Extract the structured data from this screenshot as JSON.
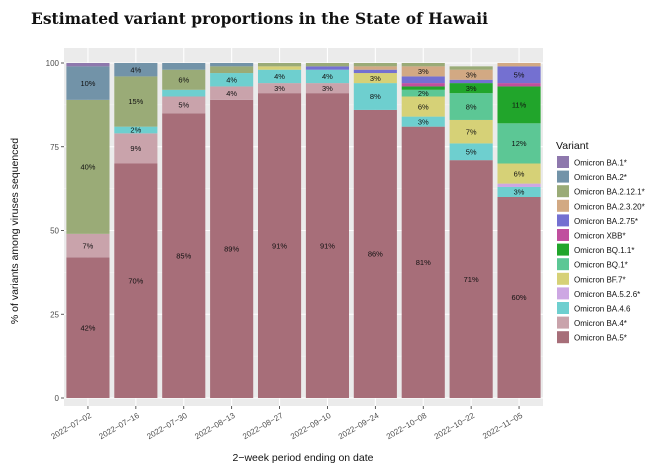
{
  "chart_data": {
    "type": "bar",
    "stacked": true,
    "title": "Estimated variant proportions in the State of Hawaii",
    "xlabel": "2−week period ending on date",
    "ylabel": "% of variants among viruses sequenced",
    "ylim": [
      0,
      100
    ],
    "yticks": [
      0,
      25,
      50,
      75,
      100
    ],
    "legend_title": "Variant",
    "legend_position": "right",
    "categories": [
      "2022−07−02",
      "2022−07−16",
      "2022−07−30",
      "2022−08−13",
      "2022−08−27",
      "2022−09−10",
      "2022−09−24",
      "2022−10−08",
      "2022−10−22",
      "2022−11−05"
    ],
    "series": [
      {
        "name": "Omicron BA.5*",
        "color": "#a76e79",
        "values": [
          42,
          70,
          85,
          89,
          91,
          91,
          86,
          81,
          71,
          60
        ],
        "labels": [
          "42%",
          "70%",
          "85%",
          "89%",
          "91%",
          "91%",
          "86%",
          "81%",
          "71%",
          "60%"
        ]
      },
      {
        "name": "Omicron BA.4*",
        "color": "#c9a3ab",
        "values": [
          7,
          9,
          5,
          4,
          3,
          3,
          0,
          0,
          0,
          0
        ],
        "labels": [
          "7%",
          "9%",
          "5%",
          "4%",
          "3%",
          "3%",
          "",
          "",
          "",
          ""
        ]
      },
      {
        "name": "Omicron BA.4.6",
        "color": "#6ecfcf",
        "values": [
          0,
          2,
          2,
          4,
          4,
          4,
          8,
          3,
          5,
          3
        ],
        "labels": [
          "",
          "2%",
          "",
          "4%",
          "4%",
          "4%",
          "8%",
          "3%",
          "5%",
          "3%"
        ]
      },
      {
        "name": "Omicron BA.5.2.6*",
        "color": "#cda7e3",
        "values": [
          0,
          0,
          0,
          0,
          0,
          0,
          0,
          0,
          0,
          1
        ],
        "labels": [
          "",
          "",
          "",
          "",
          "",
          "",
          "",
          "",
          "",
          ""
        ]
      },
      {
        "name": "Omicron BF.7*",
        "color": "#d6d177",
        "values": [
          0,
          0,
          0,
          0,
          1,
          0,
          3,
          6,
          7,
          6
        ],
        "labels": [
          "",
          "",
          "",
          "",
          "",
          "",
          "3%",
          "6%",
          "7%",
          "6%"
        ]
      },
      {
        "name": "Omicron BQ.1*",
        "color": "#5cc795",
        "values": [
          0,
          0,
          0,
          0,
          0,
          0,
          0,
          2,
          8,
          12
        ],
        "labels": [
          "",
          "",
          "",
          "",
          "",
          "",
          "",
          "2%",
          "8%",
          "12%"
        ]
      },
      {
        "name": "Omicron BQ.1.1*",
        "color": "#21a52b",
        "values": [
          0,
          0,
          0,
          0,
          0,
          0,
          0,
          1,
          3,
          11
        ],
        "labels": [
          "",
          "",
          "",
          "",
          "",
          "",
          "",
          "",
          "3%",
          "11%"
        ]
      },
      {
        "name": "Omicron XBB*",
        "color": "#c04f9e",
        "values": [
          0,
          0,
          0,
          0,
          0,
          0,
          0,
          1,
          0,
          1
        ],
        "labels": [
          "",
          "",
          "",
          "",
          "",
          "",
          "",
          "",
          "",
          ""
        ]
      },
      {
        "name": "Omicron BA.2.75*",
        "color": "#7470d1",
        "values": [
          0,
          0,
          0,
          0,
          0,
          1,
          1,
          2,
          1,
          5
        ],
        "labels": [
          "",
          "",
          "",
          "",
          "",
          "",
          "",
          "",
          "",
          "5%"
        ]
      },
      {
        "name": "Omicron BA.2.3.20*",
        "color": "#d2a983",
        "values": [
          0,
          0,
          0,
          0,
          0,
          0,
          1,
          3,
          3,
          1
        ],
        "labels": [
          "",
          "",
          "",
          "",
          "",
          "",
          "",
          "3%",
          "3%",
          ""
        ]
      },
      {
        "name": "Omicron BA.2.12.1*",
        "color": "#9aab77",
        "values": [
          40,
          15,
          6,
          2,
          1,
          1,
          1,
          1,
          1,
          0
        ],
        "labels": [
          "40%",
          "15%",
          "6%",
          "",
          "",
          "",
          "",
          "",
          "",
          ""
        ]
      },
      {
        "name": "Omicron BA.2*",
        "color": "#7293a8",
        "values": [
          10,
          4,
          2,
          1,
          0,
          0,
          0,
          0,
          0,
          0
        ],
        "labels": [
          "10%",
          "4%",
          "",
          "",
          "",
          "",
          "",
          "",
          "",
          ""
        ]
      },
      {
        "name": "Omicron BA.1*",
        "color": "#8e78ad",
        "values": [
          1,
          0,
          0,
          0,
          0,
          0,
          0,
          0,
          0,
          0
        ],
        "labels": [
          "",
          "",
          "",
          "",
          "",
          "",
          "",
          "",
          "",
          ""
        ]
      }
    ],
    "legend_order": [
      "Omicron BA.1*",
      "Omicron BA.2*",
      "Omicron BA.2.12.1*",
      "Omicron BA.2.3.20*",
      "Omicron BA.2.75*",
      "Omicron XBB*",
      "Omicron BQ.1.1*",
      "Omicron BQ.1*",
      "Omicron BF.7*",
      "Omicron BA.5.2.6*",
      "Omicron BA.4.6",
      "Omicron BA.4*",
      "Omicron BA.5*"
    ]
  }
}
